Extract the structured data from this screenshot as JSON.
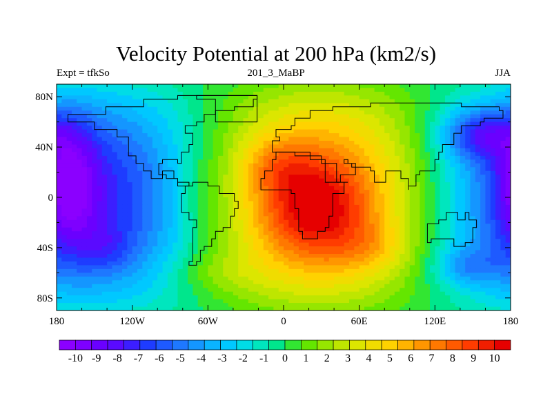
{
  "title": "Velocity Potential at 200 hPa (km2/s)",
  "subtitle_left": "Expt = tfkSo",
  "subtitle_center": "201_3_MaBP",
  "subtitle_right": "JJA",
  "chart_data": {
    "type": "heatmap",
    "variable": "Velocity potential at 200 hPa",
    "units": "km2/s",
    "projection": "cylindrical equidistant",
    "xlim": [
      -180,
      180
    ],
    "ylim": [
      -90,
      90
    ],
    "x_ticks": [
      {
        "value": -180,
        "label": "180"
      },
      {
        "value": -120,
        "label": "120W"
      },
      {
        "value": -60,
        "label": "60W"
      },
      {
        "value": 0,
        "label": "0"
      },
      {
        "value": 60,
        "label": "60E"
      },
      {
        "value": 120,
        "label": "120E"
      },
      {
        "value": 180,
        "label": "180"
      }
    ],
    "y_ticks": [
      {
        "value": 80,
        "label": "80N"
      },
      {
        "value": 40,
        "label": "40N"
      },
      {
        "value": 0,
        "label": "0"
      },
      {
        "value": -40,
        "label": "40S"
      },
      {
        "value": -80,
        "label": "80S"
      }
    ],
    "colorbar": {
      "labels": [
        "-10",
        "-9",
        "-8",
        "-7",
        "-6",
        "-5",
        "-4",
        "-3",
        "-2",
        "-1",
        "0",
        "1",
        "2",
        "3",
        "4",
        "5",
        "6",
        "7",
        "8",
        "9",
        "10"
      ],
      "colors": [
        "#8B00FF",
        "#7E00FF",
        "#6A00FF",
        "#5A0AFF",
        "#3C1EFF",
        "#1E3CFF",
        "#1E5AFF",
        "#1E78FF",
        "#1496FF",
        "#0AB4FF",
        "#00C8FF",
        "#00DCE6",
        "#00E6BE",
        "#00E68C",
        "#32E632",
        "#64E600",
        "#96E600",
        "#BEE600",
        "#DCE600",
        "#F0DC00",
        "#FFD200",
        "#FFB400",
        "#FF9600",
        "#FF7800",
        "#FF5A00",
        "#FF3C00",
        "#F01E00",
        "#E60000"
      ]
    },
    "field": {
      "description": "Zonal wavenumber-1 pattern: upper-level divergence (positive values, max ~10) centred over Africa / Indian Ocean, convergence (negative values, min ~-10) over the central and eastern Pacific.",
      "centers": [
        {
          "lon": 25,
          "lat": -10,
          "value": 10,
          "kind": "max"
        },
        {
          "lon": -170,
          "lat": 10,
          "value": -10,
          "kind": "min"
        },
        {
          "lon": 160,
          "lat": 45,
          "value": -10,
          "kind": "min"
        }
      ]
    },
    "overlay": "land-sea mask outline (coarse grid)"
  }
}
